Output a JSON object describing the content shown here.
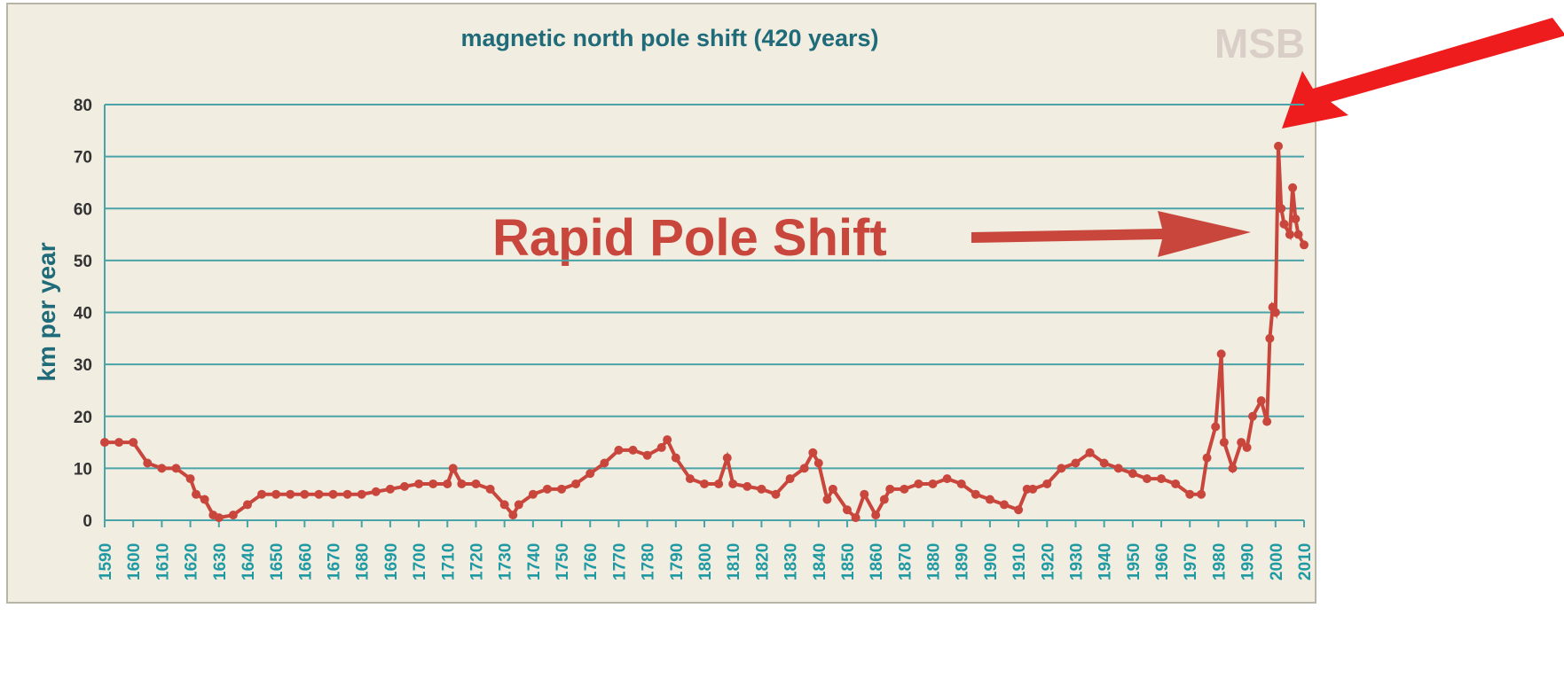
{
  "chart_data": {
    "type": "line",
    "title": "magnetic north pole shift (420 years)",
    "y_label": "km per year",
    "annotation": "Rapid Pole Shift",
    "watermark": "MSB",
    "color": "#c9463d",
    "grid": true,
    "xlim": [
      1590,
      2010
    ],
    "ylim": [
      0,
      80
    ],
    "yticks": [
      0,
      10,
      20,
      30,
      40,
      50,
      60,
      70,
      80
    ],
    "xticks": [
      1590,
      1600,
      1610,
      1620,
      1630,
      1640,
      1650,
      1660,
      1670,
      1680,
      1690,
      1700,
      1710,
      1720,
      1730,
      1740,
      1750,
      1760,
      1770,
      1780,
      1790,
      1800,
      1810,
      1820,
      1830,
      1840,
      1850,
      1860,
      1870,
      1880,
      1890,
      1900,
      1910,
      1920,
      1930,
      1940,
      1950,
      1960,
      1970,
      1980,
      1990,
      2000,
      2010
    ],
    "series": [
      {
        "name": "km per year",
        "color": "#c9463d",
        "x": [
          1590,
          1595,
          1600,
          1605,
          1610,
          1615,
          1620,
          1622,
          1625,
          1628,
          1630,
          1635,
          1640,
          1645,
          1650,
          1655,
          1660,
          1665,
          1670,
          1675,
          1680,
          1685,
          1690,
          1695,
          1700,
          1705,
          1710,
          1712,
          1715,
          1720,
          1725,
          1730,
          1733,
          1735,
          1740,
          1745,
          1750,
          1755,
          1760,
          1765,
          1770,
          1775,
          1780,
          1785,
          1787,
          1790,
          1795,
          1800,
          1805,
          1808,
          1810,
          1815,
          1820,
          1825,
          1830,
          1835,
          1838,
          1840,
          1843,
          1845,
          1850,
          1853,
          1856,
          1860,
          1863,
          1865,
          1870,
          1875,
          1880,
          1885,
          1890,
          1895,
          1900,
          1905,
          1910,
          1913,
          1915,
          1920,
          1925,
          1930,
          1935,
          1940,
          1945,
          1950,
          1955,
          1960,
          1965,
          1970,
          1974,
          1976,
          1979,
          1981,
          1982,
          1985,
          1988,
          1990,
          1992,
          1995,
          1997,
          1998,
          1999,
          2000,
          2001,
          2002,
          2003,
          2005,
          2006,
          2007,
          2008,
          2010
        ],
        "values": [
          15,
          15,
          15,
          11,
          10,
          10,
          8,
          5,
          4,
          1,
          0.5,
          1,
          3,
          5,
          5,
          5,
          5,
          5,
          5,
          5,
          5,
          5.5,
          6,
          6.5,
          7,
          7,
          7,
          10,
          7,
          7,
          6,
          3,
          1,
          3,
          5,
          6,
          6,
          7,
          9,
          11,
          13.5,
          13.5,
          12.5,
          14,
          15.5,
          12,
          8,
          7,
          7,
          12,
          7,
          6.5,
          6,
          5,
          8,
          10,
          13,
          11,
          4,
          6,
          2,
          0.5,
          5,
          1,
          4,
          6,
          6,
          7,
          7,
          8,
          7,
          5,
          4,
          3,
          2,
          6,
          6,
          7,
          10,
          11,
          13,
          11,
          10,
          9,
          8,
          8,
          7,
          5,
          5,
          12,
          18,
          32,
          15,
          10,
          15,
          14,
          20,
          23,
          19,
          35,
          41,
          40,
          72,
          60,
          57,
          55,
          64,
          58,
          55,
          53
        ]
      }
    ]
  }
}
